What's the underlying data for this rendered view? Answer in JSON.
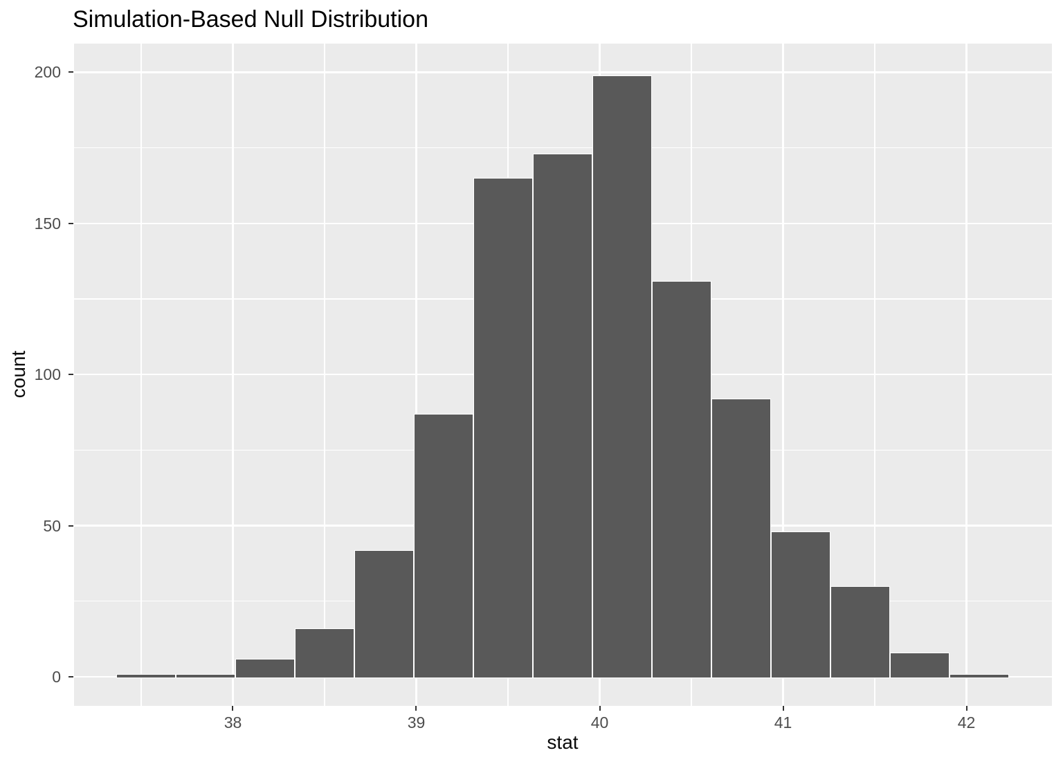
{
  "chart_data": {
    "type": "bar",
    "subtype": "histogram",
    "title": "Simulation-Based Null Distribution",
    "xlabel": "stat",
    "ylabel": "count",
    "bin_start": 37.364,
    "bin_width": 0.3245,
    "bin_centers": [
      37.53,
      37.85,
      38.18,
      38.5,
      38.82,
      39.15,
      39.47,
      39.8,
      40.12,
      40.45,
      40.77,
      41.1,
      41.42,
      41.74,
      42.07
    ],
    "counts": [
      1,
      1,
      6,
      16,
      42,
      87,
      165,
      173,
      199,
      131,
      92,
      48,
      30,
      8,
      1
    ],
    "x_ticks": [
      38,
      39,
      40,
      41,
      42
    ],
    "y_ticks": [
      0,
      50,
      100,
      150,
      200
    ],
    "x_minor_ticks": [
      37.5,
      38.5,
      39.5,
      40.5,
      41.5
    ],
    "y_minor_ticks": [
      25,
      75,
      125,
      175
    ],
    "x_range": [
      37.134,
      42.466
    ],
    "y_range": [
      -9.6,
      209.5
    ],
    "grid": true,
    "legend": "none",
    "colors": {
      "bar_fill": "#595959",
      "bar_stroke": "#FFFFFF",
      "panel_background": "#EBEBEB",
      "grid_major": "#FFFFFF",
      "grid_minor": "#FFFFFF",
      "tick_label": "#4D4D4D",
      "tick_mark": "#333333",
      "axis_title": "#0a0a0a",
      "title": "#000000",
      "figure_background": "#FFFFFF"
    }
  }
}
